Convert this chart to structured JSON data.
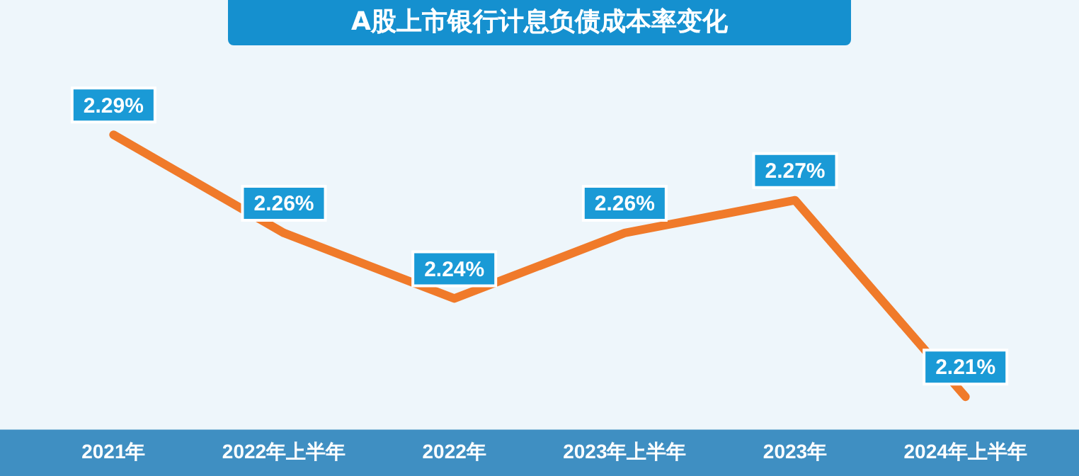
{
  "chart_data": {
    "type": "line",
    "title": "A股上市银行计息负债成本率变化",
    "categories": [
      "2021年",
      "2022年上半年",
      "2022年",
      "2023年上半年",
      "2023年",
      "2024年上半年"
    ],
    "series": [
      {
        "color": "#f07a2a",
        "values": [
          2.29,
          2.26,
          2.24,
          2.26,
          2.27,
          2.21
        ],
        "value_labels": [
          "2.29%",
          "2.26%",
          "2.24%",
          "2.26%",
          "2.27%",
          "2.21%"
        ]
      }
    ],
    "grid": false,
    "legend": false,
    "tick_labels": "x"
  }
}
